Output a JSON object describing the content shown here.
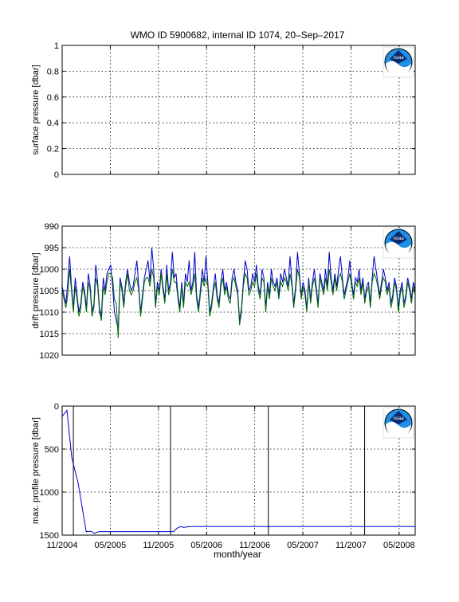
{
  "figure": {
    "title": "WMO ID 5900682, internal ID 1074, 20–Sep–2017",
    "xlabel": "month/year",
    "logo_text": "noaa"
  },
  "chart_data": [
    {
      "type": "line",
      "ylabel": "surface pressure [dbar]",
      "ylim": [
        0,
        1
      ],
      "yticks": [
        "0",
        "0.2",
        "0.4",
        "0.6",
        "0.8",
        "1"
      ],
      "reversed_y": false,
      "grid": true,
      "series": []
    },
    {
      "type": "line",
      "ylabel": "drift pressure [dbar]",
      "ylim": [
        990,
        1020
      ],
      "yticks": [
        "990",
        "995",
        "1000",
        "1005",
        "1010",
        "1015",
        "1020"
      ],
      "reversed_y": true,
      "grid": true,
      "series": [
        {
          "color": "#0000cc",
          "values": [
            1004,
            1006,
            1008,
            1003,
            997,
            1004,
            1009,
            1002,
            1006,
            1010,
            1008,
            1003,
            1005,
            1009,
            1001,
            1004,
            1010,
            1008,
            999,
            1003,
            1009,
            1011,
            1002,
            1005,
            1001,
            1000,
            999,
            1004,
            1010,
            1012,
            1014,
            1002,
            1004,
            1008,
            1003,
            1000,
            1003,
            1005,
            1004,
            1001,
            998,
            1004,
            1010,
            1006,
            1002,
            1000,
            998,
            1003,
            995,
            1000,
            1008,
            1003,
            1005,
            1000,
            1004,
            1007,
            999,
            1005,
            1003,
            996,
            1002,
            1001,
            1006,
            1009,
            1003,
            1008,
            1001,
            1003,
            998,
            1005,
            1003,
            996,
            1006,
            1009,
            1005,
            1000,
            1003,
            997,
            1003,
            1010,
            1008,
            1004,
            1001,
            1006,
            1008,
            1003,
            1000,
            1005,
            1003,
            1006,
            1007,
            1002,
            1000,
            1003,
            1005,
            1012,
            1009,
            1003,
            998,
            1000,
            1005,
            1004,
            1001,
            1003,
            999,
            1004,
            1006,
            1000,
            1002,
            1009,
            1003,
            1006,
            1000,
            1003,
            1004,
            1002,
            1006,
            1001,
            1003,
            1000,
            1002,
            1004,
            997,
            1003,
            1008,
            1004,
            996,
            1001,
            1006,
            1003,
            1005,
            1009,
            1002,
            1007,
            1003,
            1000,
            1004,
            1008,
            1001,
            1003,
            1005,
            1000,
            1004,
            996,
            1002,
            1005,
            1001,
            1004,
            1000,
            997,
            1002,
            1006,
            1004,
            1002,
            998,
            1003,
            1006,
            1002,
            1003,
            1000,
            1005,
            1002,
            1007,
            1004,
            1003,
            1008,
            1002,
            997,
            1000,
            1003,
            1006,
            1003,
            1000,
            1002,
            1005,
            1003,
            1008,
            1006,
            1002,
            1004,
            1009,
            1005,
            1003,
            1008,
            1006,
            1002,
            1004,
            1007,
            1003,
            1005
          ],
          "name": ""
        },
        {
          "color": "#006600",
          "values": [
            1005,
            1007,
            1009,
            1006,
            1000,
            1005,
            1010,
            1004,
            1007,
            1011,
            1009,
            1004,
            1006,
            1010,
            1003,
            1005,
            1011,
            1009,
            1002,
            1004,
            1010,
            1012,
            1004,
            1006,
            1003,
            1001,
            1001,
            1002,
            1007,
            1008,
            1016,
            1003,
            1005,
            1009,
            1004,
            1001,
            1005,
            1006,
            1005,
            1003,
            1002,
            1005,
            1011,
            1007,
            1003,
            1002,
            1002,
            1004,
            1000,
            1002,
            1009,
            1004,
            1006,
            1001,
            1005,
            1008,
            1001,
            1006,
            1004,
            1000,
            1003,
            1003,
            1007,
            1010,
            1004,
            1009,
            1003,
            1004,
            1003,
            1006,
            1004,
            1001,
            1007,
            1010,
            1006,
            1002,
            1004,
            1002,
            1004,
            1011,
            1009,
            1005,
            1003,
            1007,
            1009,
            1004,
            1002,
            1006,
            1004,
            1007,
            1008,
            1003,
            1002,
            1004,
            1006,
            1013,
            1010,
            1004,
            1001,
            1002,
            1006,
            1005,
            1003,
            1004,
            1001,
            1005,
            1007,
            1002,
            1003,
            1010,
            1004,
            1007,
            1002,
            1004,
            1005,
            1003,
            1007,
            1003,
            1004,
            1002,
            1003,
            1005,
            1001,
            1004,
            1009,
            1005,
            1000,
            1002,
            1007,
            1004,
            1006,
            1010,
            1003,
            1008,
            1004,
            1002,
            1005,
            1009,
            1002,
            1004,
            1006,
            1002,
            1005,
            1000,
            1003,
            1006,
            1002,
            1005,
            1002,
            1001,
            1003,
            1007,
            1005,
            1003,
            1001,
            1004,
            1007,
            1003,
            1004,
            1002,
            1006,
            1003,
            1008,
            1005,
            1004,
            1009,
            1003,
            1001,
            1002,
            1004,
            1007,
            1004,
            1002,
            1003,
            1006,
            1004,
            1009,
            1007,
            1003,
            1005,
            1010,
            1006,
            1004,
            1009,
            1007,
            1003,
            1005,
            1008,
            1004,
            1006
          ],
          "name": ""
        }
      ]
    },
    {
      "type": "line",
      "ylabel": "max. profile pressure [dbar]",
      "ylim": [
        0,
        1500
      ],
      "yticks": [
        "0",
        "500",
        "1000",
        "1500"
      ],
      "reversed_y": true,
      "grid": true,
      "series": [
        {
          "color": "#0000cc",
          "name": "",
          "x": [
            0.0,
            0.6,
            1.2,
            2.0,
            3.0,
            3.6,
            4.0,
            4.6,
            5.0,
            8.0,
            9.0,
            12.0,
            13.0,
            13.3,
            13.9,
            14.3,
            14.8,
            15.1,
            16.0,
            18.0,
            20.0,
            24.0,
            26.0,
            28.0,
            30.0,
            32.0,
            33.0,
            36.0,
            40.0,
            44.0
          ],
          "y": [
            120,
            50,
            600,
            900,
            1460,
            1455,
            1480,
            1460,
            1460,
            1460,
            1460,
            1460,
            1460,
            1460,
            1460,
            1420,
            1400,
            1410,
            1400,
            1400,
            1400,
            1400,
            1400,
            1400,
            1400,
            1400,
            1400,
            1400,
            1400,
            1400
          ]
        }
      ],
      "vlines": [
        1.4,
        13.5,
        25.7,
        37.7
      ]
    }
  ],
  "xaxis": {
    "start": "11/2004",
    "months_span": 44,
    "tick_labels": [
      "11/2004",
      "05/2005",
      "11/2005",
      "05/2006",
      "11/2006",
      "05/2007",
      "11/2007",
      "05/2008"
    ],
    "tick_months": [
      0,
      6,
      12,
      18,
      24,
      30,
      36,
      42
    ]
  }
}
